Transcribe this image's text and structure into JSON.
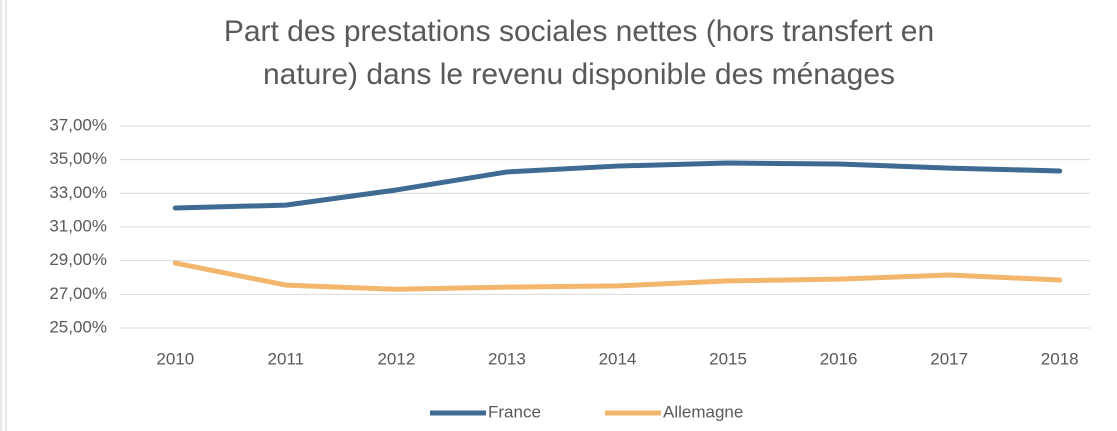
{
  "chart_data": {
    "type": "line",
    "title": [
      "Part des prestations sociales nettes (hors transfert en",
      "nature) dans le revenu disponible des ménages"
    ],
    "categories": [
      "2010",
      "2011",
      "2012",
      "2013",
      "2014",
      "2015",
      "2016",
      "2017",
      "2018"
    ],
    "series": [
      {
        "name": "France",
        "color": "#3f6b93",
        "values": [
          32.13,
          32.3,
          33.2,
          34.27,
          34.62,
          34.8,
          34.74,
          34.5,
          34.33
        ]
      },
      {
        "name": "Allemagne",
        "color": "#f2b66d",
        "values": [
          28.86,
          27.55,
          27.3,
          27.43,
          27.5,
          27.8,
          27.9,
          28.15,
          27.85
        ]
      }
    ],
    "ylim": [
      25,
      37
    ],
    "yticks": [
      {
        "value": 25,
        "label": "25,00%"
      },
      {
        "value": 27,
        "label": "27,00%"
      },
      {
        "value": 29,
        "label": "29,00%"
      },
      {
        "value": 31,
        "label": "31,00%"
      },
      {
        "value": 33,
        "label": "33,00%"
      },
      {
        "value": 35,
        "label": "35,00%"
      },
      {
        "value": 37,
        "label": "37,00%"
      }
    ],
    "grid": true,
    "legend": "bottom"
  }
}
